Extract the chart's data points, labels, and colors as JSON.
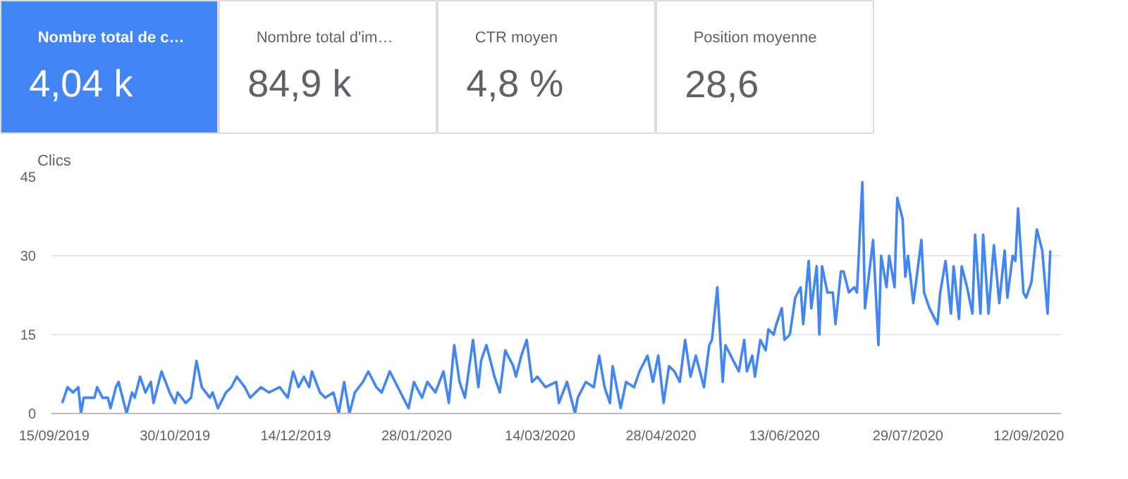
{
  "chart_data": [
    {
      "type": "other",
      "title": "Nombre total de c…",
      "annotations": [
        "4,04 k"
      ],
      "color": "#4285f4"
    },
    {
      "type": "other",
      "title": "Nombre total d'im…",
      "annotations": [
        "84,9 k"
      ],
      "color": "#ffffff"
    },
    {
      "type": "other",
      "title": "CTR moyen",
      "annotations": [
        "4,8 %"
      ],
      "color": "#ffffff"
    },
    {
      "type": "other",
      "title": "Position moyenne",
      "annotations": [
        "28,6"
      ],
      "color": "#ffffff"
    },
    {
      "type": "line",
      "ylabel": "Clics",
      "x": [
        "2019-09-18",
        "2019-09-20",
        "2019-09-22",
        "2019-09-24",
        "2019-09-25",
        "2019-09-26",
        "2019-09-28",
        "2019-09-30",
        "2019-10-01",
        "2019-10-03",
        "2019-10-05",
        "2019-10-06",
        "2019-10-08",
        "2019-10-09",
        "2019-10-12",
        "2019-10-14",
        "2019-10-15",
        "2019-10-17",
        "2019-10-19",
        "2019-10-21",
        "2019-10-22",
        "2019-10-25",
        "2019-10-28",
        "2019-10-30",
        "2019-10-31",
        "2019-11-03",
        "2019-11-05",
        "2019-11-07",
        "2019-11-09",
        "2019-11-12",
        "2019-11-13",
        "2019-11-15",
        "2019-11-18",
        "2019-11-20",
        "2019-11-22",
        "2019-11-25",
        "2019-11-27",
        "2019-12-01",
        "2019-12-04",
        "2019-12-08",
        "2019-12-11",
        "2019-12-13",
        "2019-12-15",
        "2019-12-17",
        "2019-12-19",
        "2019-12-20",
        "2019-12-23",
        "2019-12-25",
        "2019-12-28",
        "2019-12-30",
        "2020-01-01",
        "2020-01-03",
        "2020-01-05",
        "2020-01-08",
        "2020-01-10",
        "2020-01-13",
        "2020-01-15",
        "2020-01-18",
        "2020-01-21",
        "2020-01-25",
        "2020-01-27",
        "2020-01-30",
        "2020-02-01",
        "2020-02-04",
        "2020-02-07",
        "2020-02-09",
        "2020-02-11",
        "2020-02-13",
        "2020-02-15",
        "2020-02-18",
        "2020-02-20",
        "2020-02-21",
        "2020-02-23",
        "2020-02-26",
        "2020-02-28",
        "2020-03-01",
        "2020-03-04",
        "2020-03-05",
        "2020-03-07",
        "2020-03-09",
        "2020-03-11",
        "2020-03-13",
        "2020-03-16",
        "2020-03-20",
        "2020-03-21",
        "2020-03-24",
        "2020-03-27",
        "2020-03-28",
        "2020-03-31",
        "2020-04-03",
        "2020-04-05",
        "2020-04-07",
        "2020-04-09",
        "2020-04-10",
        "2020-04-13",
        "2020-04-15",
        "2020-04-18",
        "2020-04-20",
        "2020-04-23",
        "2020-04-25",
        "2020-04-27",
        "2020-04-29",
        "2020-05-01",
        "2020-05-03",
        "2020-05-05",
        "2020-05-07",
        "2020-05-09",
        "2020-05-11",
        "2020-05-14",
        "2020-05-16",
        "2020-05-17",
        "2020-05-19",
        "2020-05-21",
        "2020-05-22",
        "2020-05-25",
        "2020-05-27",
        "2020-05-29",
        "2020-05-30",
        "2020-06-01",
        "2020-06-02",
        "2020-06-04",
        "2020-06-06",
        "2020-06-07",
        "2020-06-09",
        "2020-06-10",
        "2020-06-12",
        "2020-06-13",
        "2020-06-15",
        "2020-06-17",
        "2020-06-19",
        "2020-06-20",
        "2020-06-22",
        "2020-06-23",
        "2020-06-25",
        "2020-06-26",
        "2020-06-27",
        "2020-06-29",
        "2020-07-01",
        "2020-07-02",
        "2020-07-04",
        "2020-07-05",
        "2020-07-07",
        "2020-07-09",
        "2020-07-10",
        "2020-07-12",
        "2020-07-13",
        "2020-07-16",
        "2020-07-18",
        "2020-07-19",
        "2020-07-21",
        "2020-07-22",
        "2020-07-24",
        "2020-07-25",
        "2020-07-27",
        "2020-07-28",
        "2020-07-29",
        "2020-07-31",
        "2020-08-03",
        "2020-08-04",
        "2020-08-06",
        "2020-08-09",
        "2020-08-10",
        "2020-08-12",
        "2020-08-14",
        "2020-08-15",
        "2020-08-17",
        "2020-08-18",
        "2020-08-20",
        "2020-08-22",
        "2020-08-23",
        "2020-08-25",
        "2020-08-26",
        "2020-08-28",
        "2020-08-30",
        "2020-09-01",
        "2020-09-03",
        "2020-09-04",
        "2020-09-06",
        "2020-09-07",
        "2020-09-08",
        "2020-09-10",
        "2020-09-11",
        "2020-09-13",
        "2020-09-15",
        "2020-09-17",
        "2020-09-19",
        "2020-09-20"
      ],
      "series": [
        {
          "color": "#4285f4",
          "values": [
            2,
            5,
            4,
            5,
            0,
            3,
            3,
            3,
            5,
            3,
            3,
            1,
            5,
            6,
            0,
            4,
            3,
            7,
            4,
            6,
            2,
            8,
            4,
            2,
            4,
            2,
            3,
            10,
            5,
            3,
            4,
            1,
            4,
            5,
            7,
            5,
            3,
            5,
            4,
            5,
            3,
            8,
            5,
            7,
            5,
            8,
            4,
            3,
            4,
            0,
            6,
            0,
            4,
            6,
            8,
            5,
            4,
            8,
            5,
            1,
            6,
            3,
            6,
            4,
            8,
            2,
            13,
            6,
            3,
            14,
            5,
            10,
            13,
            7,
            4,
            12,
            9,
            7,
            11,
            14,
            6,
            7,
            5,
            6,
            2,
            6,
            0,
            3,
            6,
            5,
            11,
            5,
            2,
            9,
            1,
            6,
            5,
            8,
            11,
            6,
            11,
            2,
            9,
            8,
            6,
            14,
            7,
            11,
            5,
            13,
            14,
            24,
            6,
            13,
            10,
            8,
            14,
            8,
            11,
            7,
            14,
            12,
            16,
            15,
            17,
            20,
            14,
            15,
            22,
            24,
            17,
            29,
            20,
            28,
            15,
            28,
            23,
            23,
            17,
            27,
            27,
            23,
            24,
            23,
            44,
            20,
            33,
            13,
            30,
            24,
            30,
            24,
            41,
            37,
            26,
            30,
            21,
            33,
            23,
            20,
            17,
            23,
            29,
            19,
            28,
            18,
            28,
            24,
            19,
            34,
            19,
            34,
            19,
            32,
            21,
            31,
            22,
            30,
            29,
            39,
            23,
            22,
            25,
            35,
            31,
            19,
            31
          ]
        }
      ],
      "xlim": [
        "2019-09-14",
        "2020-09-24"
      ],
      "ylim": [
        0,
        45
      ],
      "xticks": [
        {
          "value": "2019-09-15",
          "label": "15/09/2019"
        },
        {
          "value": "2019-10-30",
          "label": "30/10/2019"
        },
        {
          "value": "2019-12-14",
          "label": "14/12/2019"
        },
        {
          "value": "2020-01-28",
          "label": "28/01/2020"
        },
        {
          "value": "2020-03-14",
          "label": "14/03/2020"
        },
        {
          "value": "2020-04-28",
          "label": "28/04/2020"
        },
        {
          "value": "2020-06-13",
          "label": "13/06/2020"
        },
        {
          "value": "2020-07-29",
          "label": "29/07/2020"
        },
        {
          "value": "2020-09-12",
          "label": "12/09/2020"
        }
      ],
      "yticks": [
        0,
        15,
        30,
        45
      ],
      "grid": "y"
    }
  ]
}
